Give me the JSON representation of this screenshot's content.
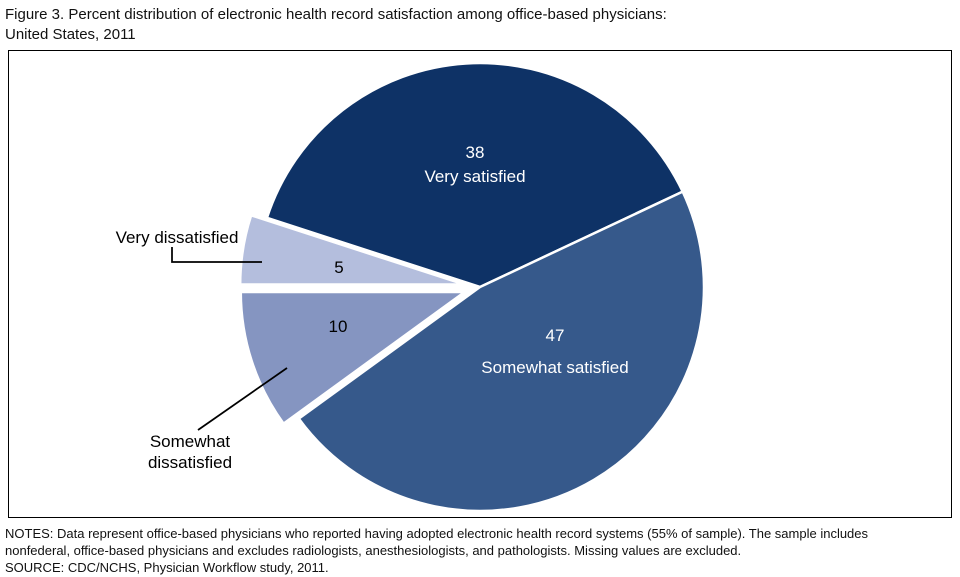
{
  "figure": {
    "title_lines": [
      "Figure 3. Percent distribution of electronic health record satisfaction among office-based physicians:",
      "United States, 2011"
    ]
  },
  "chart_data": {
    "type": "pie",
    "title": "Percent distribution of electronic health record satisfaction among office-based physicians: United States, 2011",
    "unit": "percent",
    "start_angle_deg": -72,
    "direction": "clockwise",
    "slices": [
      {
        "label": "Very satisfied",
        "value": 38,
        "color": "#0e3266",
        "text_color": "#ffffff",
        "exploded": false,
        "label_position": "inside"
      },
      {
        "label": "Somewhat satisfied",
        "value": 47,
        "color": "#36598b",
        "text_color": "#ffffff",
        "exploded": false,
        "label_position": "inside"
      },
      {
        "label": "Somewhat dissatisfied",
        "value": 10,
        "color": "#8595c1",
        "text_color": "#000000",
        "exploded": true,
        "label_position": "outside"
      },
      {
        "label": "Very dissatisfied",
        "value": 5,
        "color": "#b4bedd",
        "text_color": "#000000",
        "exploded": true,
        "label_position": "outside"
      }
    ]
  },
  "notes": {
    "lines": [
      "NOTES: Data represent office-based physicians who reported having adopted electronic health record systems (55% of sample). The sample includes",
      "nonfederal, office-based physicians and excludes radiologists, anesthesiologists, and pathologists. Missing values are excluded.",
      "SOURCE: CDC/NCHS, Physician Workflow study, 2011."
    ]
  }
}
